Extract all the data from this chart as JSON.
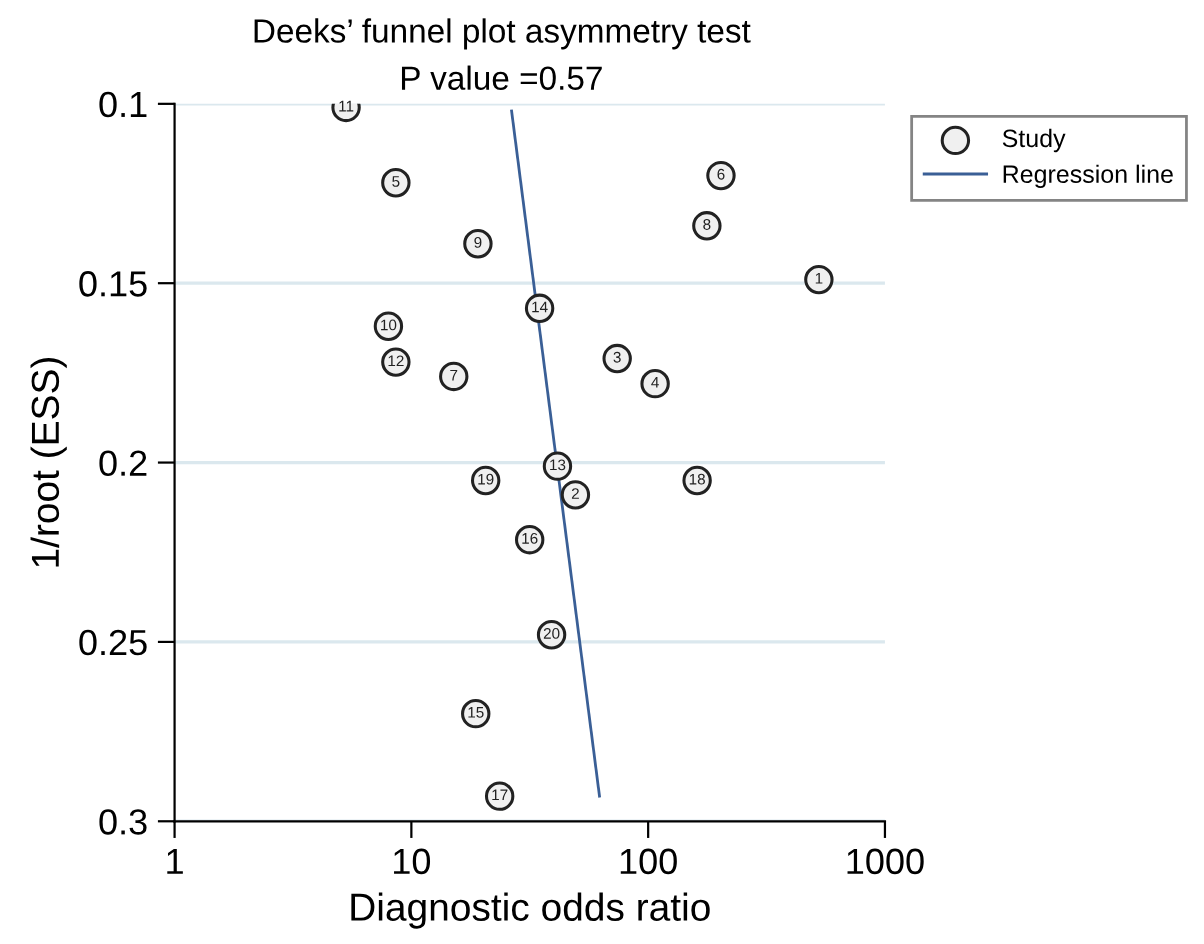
{
  "chart_data": {
    "type": "scatter",
    "title": "Deeks’ funnel plot asymmetry test",
    "subtitle": "P value =0.57",
    "xlabel": "Diagnostic odds ratio",
    "ylabel": "1/root (ESS)",
    "log": "x",
    "xlim": [
      1,
      1000
    ],
    "xticks": [
      1,
      10,
      100,
      1000
    ],
    "ylim": [
      0.3,
      0.1
    ],
    "yticks": [
      0.1,
      0.15,
      0.2,
      0.25,
      0.3
    ],
    "grid": "y",
    "legend": "top right",
    "series": [
      {
        "name": "Study",
        "color": "#222222",
        "marker": "circle",
        "x": [
          526,
          49.3,
          74,
          107,
          8.6,
          203,
          15.1,
          177,
          19.1,
          8.0,
          5.3,
          8.6,
          41.4,
          34.8,
          18.7,
          31.6,
          23.6,
          161,
          20.6,
          39.1
        ],
        "values": [
          0.149,
          0.209,
          0.171,
          0.178,
          0.122,
          0.12,
          0.176,
          0.134,
          0.139,
          0.162,
          0.101,
          0.172,
          0.201,
          0.157,
          0.27,
          0.2215,
          0.293,
          0.205,
          0.205,
          0.248
        ]
      },
      {
        "name": "Regression line",
        "type": "line",
        "color": "#3a5f96",
        "line_style": "solid",
        "marker": "none",
        "x": [
          26.5,
          62.3
        ],
        "values": [
          0.102,
          0.293
        ]
      }
    ],
    "annotations": [
      {
        "text": "1",
        "x": 526,
        "y": 0.149
      },
      {
        "text": "2",
        "x": 49.3,
        "y": 0.209
      },
      {
        "text": "3",
        "x": 74,
        "y": 0.171
      },
      {
        "text": "4",
        "x": 107,
        "y": 0.178
      },
      {
        "text": "5",
        "x": 8.6,
        "y": 0.122
      },
      {
        "text": "6",
        "x": 203,
        "y": 0.12
      },
      {
        "text": "7",
        "x": 15.1,
        "y": 0.176
      },
      {
        "text": "8",
        "x": 177,
        "y": 0.134
      },
      {
        "text": "9",
        "x": 19.1,
        "y": 0.139
      },
      {
        "text": "10",
        "x": 8.0,
        "y": 0.162
      },
      {
        "text": "11",
        "x": 5.3,
        "y": 0.101
      },
      {
        "text": "12",
        "x": 8.6,
        "y": 0.172
      },
      {
        "text": "13",
        "x": 41.4,
        "y": 0.201
      },
      {
        "text": "14",
        "x": 34.8,
        "y": 0.157
      },
      {
        "text": "15",
        "x": 18.7,
        "y": 0.27
      },
      {
        "text": "16",
        "x": 31.6,
        "y": 0.2215
      },
      {
        "text": "17",
        "x": 23.6,
        "y": 0.293
      },
      {
        "text": "18",
        "x": 161,
        "y": 0.205
      },
      {
        "text": "19",
        "x": 20.6,
        "y": 0.205
      },
      {
        "text": "20",
        "x": 39.1,
        "y": 0.248
      }
    ]
  }
}
